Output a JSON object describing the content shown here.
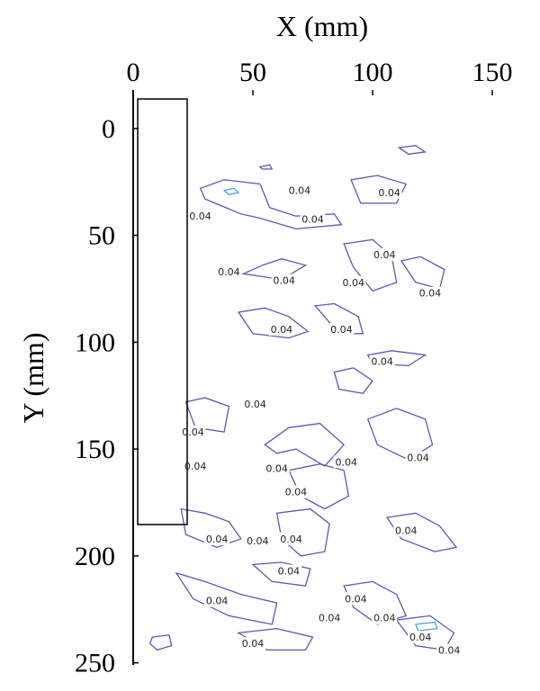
{
  "chart_data": {
    "type": "contour",
    "xlabel": "X (mm)",
    "ylabel": "Y (mm)",
    "xlim": [
      0,
      150
    ],
    "ylim": [
      -18,
      251
    ],
    "xticks": [
      0,
      50,
      100,
      150
    ],
    "yticks": [
      0,
      50,
      100,
      150,
      200,
      250
    ],
    "y_inverted": true,
    "contours": [
      {
        "level": 0.04,
        "color": "#5a5aa8",
        "x": [
          28,
          38,
          53,
          57,
          68,
          84,
          87,
          68,
          53,
          45,
          30
        ],
        "y": [
          28,
          24,
          26,
          37,
          41,
          40,
          45,
          47,
          42,
          40,
          33
        ]
      },
      {
        "level": 0.04,
        "color": "#4f9fd8",
        "x": [
          38,
          42,
          44,
          40
        ],
        "y": [
          29,
          28,
          30,
          31
        ]
      },
      {
        "level": 0.04,
        "color": "#5a5aa8",
        "x": [
          91,
          102,
          114,
          110,
          95
        ],
        "y": [
          24,
          22,
          26,
          35,
          35
        ]
      },
      {
        "level": 0.04,
        "color": "#5a5aa8",
        "x": [
          111,
          118,
          122,
          115
        ],
        "y": [
          9,
          8,
          11,
          12
        ]
      },
      {
        "level": 0.04,
        "color": "#5a5aa8",
        "x": [
          53,
          57,
          58,
          54
        ],
        "y": [
          18,
          17,
          19,
          19
        ]
      },
      {
        "level": 0.04,
        "color": "#5a5aa8",
        "x": [
          54,
          62,
          72,
          66,
          58,
          46
        ],
        "y": [
          64,
          61,
          64,
          68,
          70,
          68
        ]
      },
      {
        "level": 0.04,
        "color": "#5a5aa8",
        "x": [
          88,
          100,
          108,
          110,
          100,
          92
        ],
        "y": [
          54,
          52,
          60,
          72,
          76,
          65
        ]
      },
      {
        "level": 0.04,
        "color": "#5a5aa8",
        "x": [
          112,
          120,
          130,
          128,
          118
        ],
        "y": [
          62,
          60,
          66,
          75,
          72
        ]
      },
      {
        "level": 0.04,
        "color": "#5a5aa8",
        "x": [
          44,
          55,
          65,
          73,
          65,
          50
        ],
        "y": [
          86,
          84,
          88,
          95,
          98,
          96
        ]
      },
      {
        "level": 0.04,
        "color": "#5a5aa8",
        "x": [
          76,
          84,
          94,
          96,
          86
        ],
        "y": [
          83,
          82,
          88,
          96,
          96
        ]
      },
      {
        "level": 0.04,
        "color": "#5a5aa8",
        "x": [
          98,
          108,
          122,
          115,
          100
        ],
        "y": [
          106,
          104,
          106,
          111,
          110
        ]
      },
      {
        "level": 0.04,
        "color": "#5a5aa8",
        "x": [
          84,
          92,
          100,
          96,
          86
        ],
        "y": [
          114,
          112,
          118,
          124,
          122
        ]
      },
      {
        "level": 0.04,
        "color": "#5a5aa8",
        "x": [
          22,
          30,
          40,
          38,
          26
        ],
        "y": [
          128,
          126,
          130,
          142,
          140
        ]
      },
      {
        "level": 0.04,
        "color": "#5a5aa8",
        "x": [
          55,
          65,
          78,
          88,
          80,
          68,
          60
        ],
        "y": [
          148,
          140,
          138,
          148,
          158,
          150,
          152
        ]
      },
      {
        "level": 0.04,
        "color": "#5a5aa8",
        "x": [
          98,
          110,
          122,
          125,
          115,
          102
        ],
        "y": [
          136,
          131,
          136,
          148,
          155,
          148
        ]
      },
      {
        "level": 0.04,
        "color": "#5a5aa8",
        "x": [
          65,
          78,
          88,
          90,
          80,
          70
        ],
        "y": [
          160,
          157,
          160,
          172,
          178,
          172
        ]
      },
      {
        "level": 0.04,
        "color": "#5a5aa8",
        "x": [
          20,
          30,
          40,
          45,
          35,
          22
        ],
        "y": [
          178,
          180,
          184,
          192,
          196,
          190
        ]
      },
      {
        "level": 0.04,
        "color": "#5a5aa8",
        "x": [
          60,
          74,
          82,
          80,
          70,
          62
        ],
        "y": [
          180,
          178,
          185,
          198,
          200,
          192
        ]
      },
      {
        "level": 0.04,
        "color": "#5a5aa8",
        "x": [
          106,
          118,
          128,
          135,
          126,
          112
        ],
        "y": [
          182,
          180,
          186,
          196,
          198,
          192
        ]
      },
      {
        "level": 0.04,
        "color": "#5a5aa8",
        "x": [
          50,
          62,
          74,
          72,
          58
        ],
        "y": [
          204,
          203,
          206,
          214,
          212
        ]
      },
      {
        "level": 0.04,
        "color": "#5a5aa8",
        "x": [
          18,
          30,
          45,
          60,
          58,
          40,
          25
        ],
        "y": [
          208,
          212,
          218,
          222,
          232,
          228,
          220
        ]
      },
      {
        "level": 0.04,
        "color": "#5a5aa8",
        "x": [
          88,
          100,
          110,
          114,
          102,
          92
        ],
        "y": [
          214,
          212,
          218,
          228,
          232,
          224
        ]
      },
      {
        "level": 0.04,
        "color": "#5a5aa8",
        "x": [
          110,
          124,
          134,
          130,
          118
        ],
        "y": [
          230,
          228,
          236,
          244,
          242
        ]
      },
      {
        "level": 0.04,
        "color": "#4f9fd8",
        "x": [
          118,
          126,
          127,
          119
        ],
        "y": [
          232,
          231,
          234,
          235
        ]
      },
      {
        "level": 0.04,
        "color": "#5a5aa8",
        "x": [
          8,
          15,
          16,
          10,
          7
        ],
        "y": [
          238,
          237,
          242,
          244,
          241
        ]
      },
      {
        "level": 0.04,
        "color": "#5a5aa8",
        "x": [
          44,
          60,
          75,
          72,
          56
        ],
        "y": [
          236,
          234,
          238,
          244,
          244
        ]
      }
    ],
    "contour_labels": [
      {
        "level": 0.04,
        "x": 69.5,
        "y": 29
      },
      {
        "level": 0.04,
        "x": 107,
        "y": 30
      },
      {
        "level": 0.04,
        "x": 75,
        "y": 42.5
      },
      {
        "level": 0.04,
        "x": 28,
        "y": 41
      },
      {
        "level": 0.04,
        "x": 40,
        "y": 67
      },
      {
        "level": 0.04,
        "x": 63,
        "y": 71
      },
      {
        "level": 0.04,
        "x": 105,
        "y": 59
      },
      {
        "level": 0.04,
        "x": 92,
        "y": 72
      },
      {
        "level": 0.04,
        "x": 124,
        "y": 77
      },
      {
        "level": 0.04,
        "x": 62,
        "y": 94
      },
      {
        "level": 0.04,
        "x": 87,
        "y": 94
      },
      {
        "level": 0.04,
        "x": 104,
        "y": 109
      },
      {
        "level": 0.04,
        "x": 51,
        "y": 129
      },
      {
        "level": 0.04,
        "x": 25,
        "y": 142
      },
      {
        "level": 0.04,
        "x": 60,
        "y": 159
      },
      {
        "level": 0.04,
        "x": 89,
        "y": 156
      },
      {
        "level": 0.04,
        "x": 119,
        "y": 154
      },
      {
        "level": 0.04,
        "x": 26,
        "y": 158
      },
      {
        "level": 0.04,
        "x": 68,
        "y": 170
      },
      {
        "level": 0.04,
        "x": 35,
        "y": 192
      },
      {
        "level": 0.04,
        "x": 52,
        "y": 193
      },
      {
        "level": 0.04,
        "x": 66,
        "y": 192
      },
      {
        "level": 0.04,
        "x": 114,
        "y": 188
      },
      {
        "level": 0.04,
        "x": 65,
        "y": 207
      },
      {
        "level": 0.04,
        "x": 35,
        "y": 221
      },
      {
        "level": 0.04,
        "x": 93,
        "y": 220
      },
      {
        "level": 0.04,
        "x": 82,
        "y": 229
      },
      {
        "level": 0.04,
        "x": 105,
        "y": 229
      },
      {
        "level": 0.04,
        "x": 120,
        "y": 238
      },
      {
        "level": 0.04,
        "x": 50,
        "y": 241
      },
      {
        "level": 0.04,
        "x": 132,
        "y": 244
      }
    ]
  }
}
